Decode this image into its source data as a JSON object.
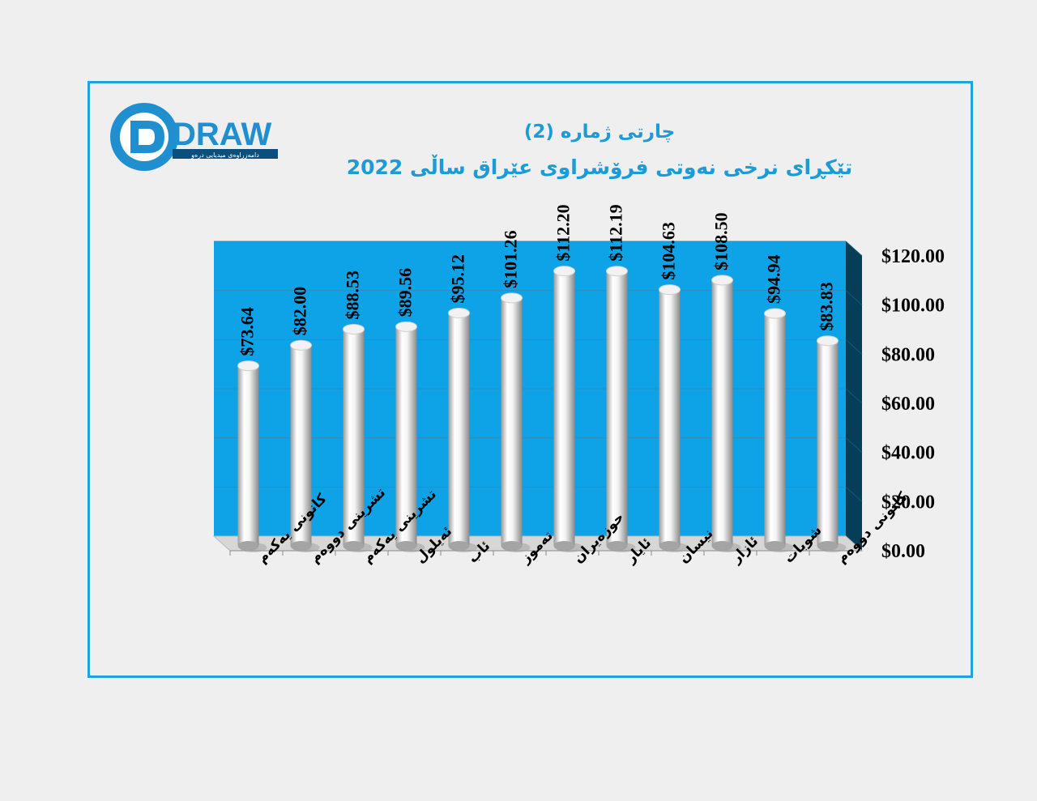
{
  "logo": {
    "text": "DRAW",
    "tagline": "دامەزراوەی میدیایی درەو",
    "colors": {
      "primary": "#1f8fd0",
      "dark": "#0b4f7c"
    }
  },
  "titles": {
    "line1": "چارتی ژمارە (2)",
    "line2": "تێکڕای نرخی نەوتی فرۆشراوی عێراق ساڵی 2022"
  },
  "chart_data": {
    "type": "bar",
    "categories": [
      "کانونی یەکەم",
      "تشرینی دووەم",
      "تشرینی یەکەم",
      "ئەیلول",
      "ئاب",
      "تەموز",
      "حوزەیران",
      "ئایار",
      "نیسان",
      "ئازار",
      "شوبات",
      "کانونی دووەم"
    ],
    "values": [
      73.64,
      82.0,
      88.53,
      89.56,
      95.12,
      101.26,
      112.2,
      112.19,
      104.63,
      108.5,
      94.94,
      83.83
    ],
    "value_labels": [
      "$73.64",
      "$82.00",
      "$88.53",
      "$89.56",
      "$95.12",
      "$101.26",
      "$112.20",
      "$112.19",
      "$104.63",
      "$108.50",
      "$94.94",
      "$83.83"
    ],
    "y_ticks": [
      "$0.00",
      "$20.00",
      "$40.00",
      "$60.00",
      "$80.00",
      "$100.00",
      "$120.00"
    ],
    "ylim": [
      0,
      120
    ],
    "y_axis_side": "right",
    "grid": true,
    "legend": "none",
    "colors": {
      "plot_bg": "#0ea2e6",
      "wall_side": "#073e57",
      "floor": "#d7d7d7",
      "bar": "#ffffff",
      "frame": "#1fa3dc"
    }
  }
}
